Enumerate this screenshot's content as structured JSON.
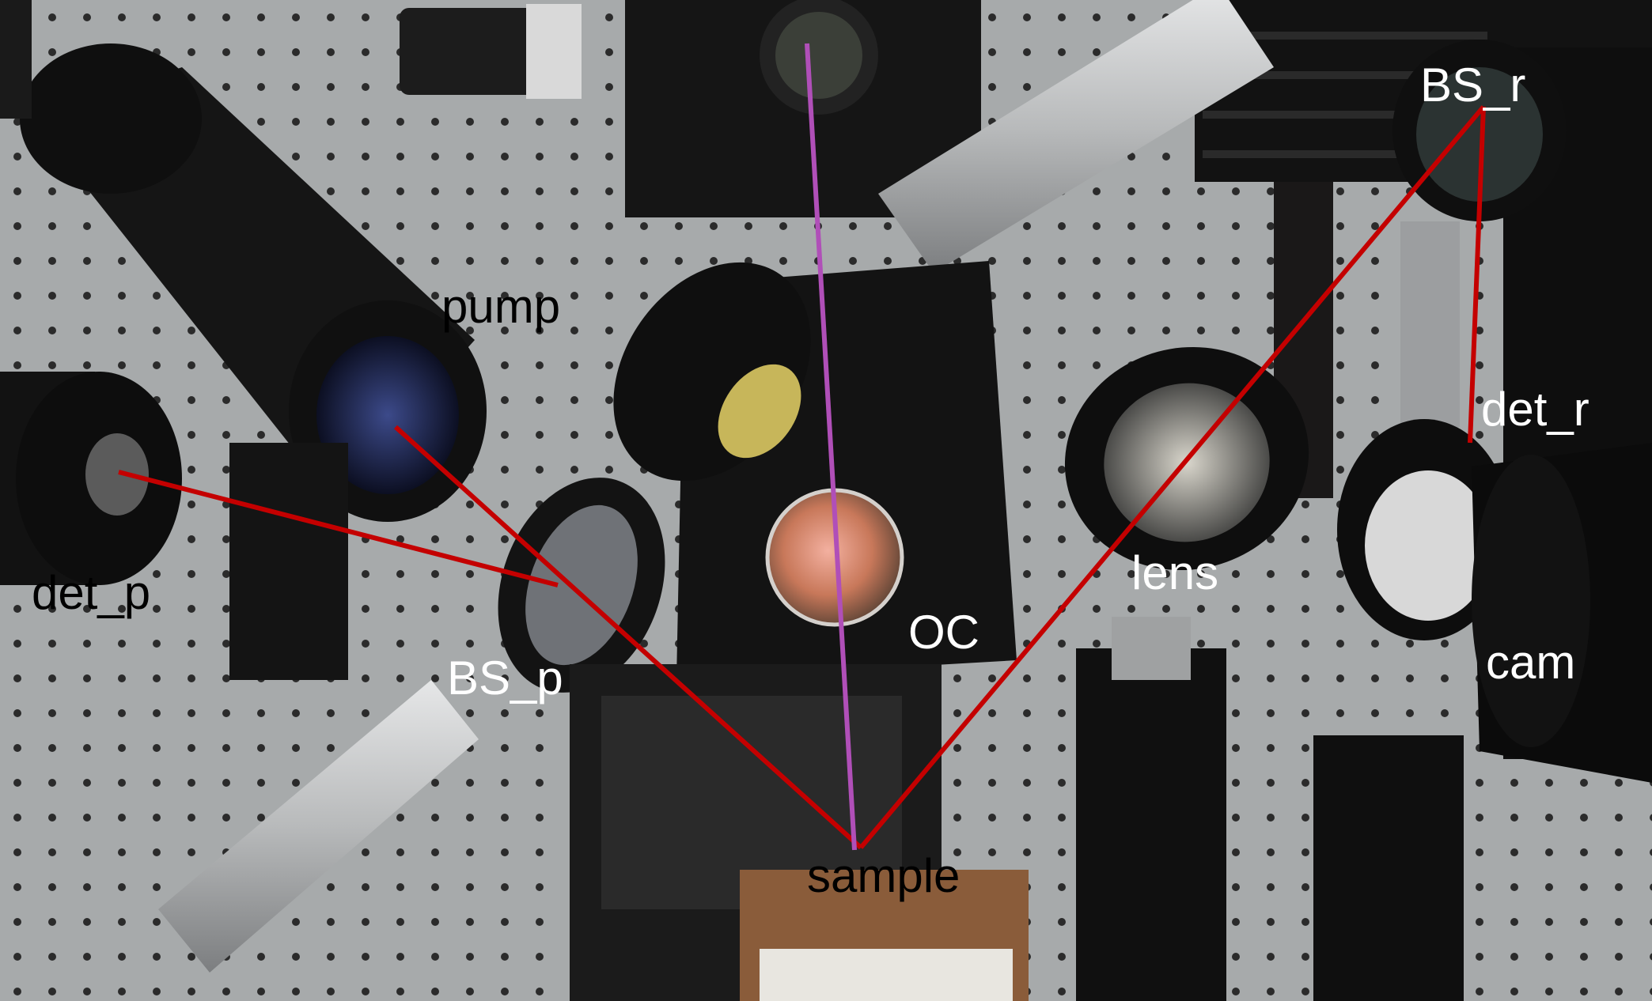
{
  "photo": {
    "colors": {
      "beam_red": "#c40000",
      "beam_violet": "#b04fb8",
      "table": "#a9acad",
      "metal_black": "#161616",
      "aluminum": "#c9cbcc",
      "sample_board": "#8a5c3a"
    }
  },
  "labels": {
    "pump": "pump",
    "det_p": "det_p",
    "bs_p": "BS_p",
    "oc": "OC",
    "lens": "lens",
    "sample": "sample",
    "bs_r": "BS_r",
    "det_r": "det_r",
    "cam": "cam"
  }
}
